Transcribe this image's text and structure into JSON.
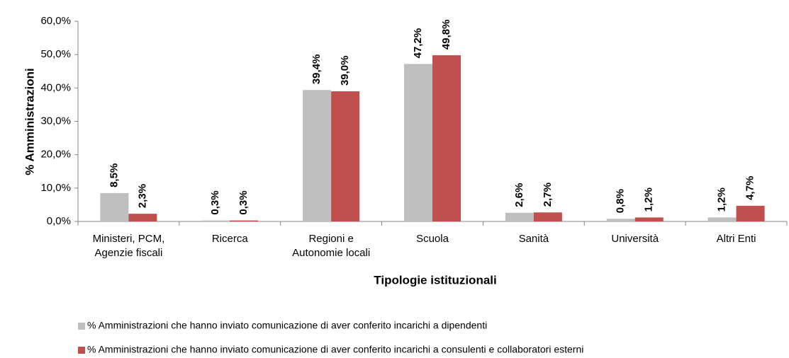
{
  "chart_data": {
    "type": "bar",
    "x_label": "Tipologie istituzionali",
    "y_label": "% Amministrazioni",
    "categories": [
      "Ministeri, PCM,\nAgenzie fiscali",
      "Ricerca",
      "Regioni e\nAutonomie locali",
      "Scuola",
      "Sanità",
      "Università",
      "Altri Enti"
    ],
    "series": [
      {
        "name": "% Amministrazioni che hanno inviato comunicazione di aver conferito incarichi a dipendenti",
        "color": "#bfbfbf",
        "values": [
          8.5,
          0.3,
          39.4,
          47.2,
          2.6,
          0.8,
          1.2
        ],
        "value_labels": [
          "8,5%",
          "0,3%",
          "39,4%",
          "47,2%",
          "2,6%",
          "0,8%",
          "1,2%"
        ]
      },
      {
        "name": "% Amministrazioni che hanno inviato comunicazione di aver conferito incarichi a consulenti e collaboratori esterni",
        "color": "#c0504d",
        "values": [
          2.3,
          0.3,
          39.0,
          49.8,
          2.7,
          1.2,
          4.7
        ],
        "value_labels": [
          "2,3%",
          "0,3%",
          "39,0%",
          "49,8%",
          "2,7%",
          "1,2%",
          "4,7%"
        ]
      }
    ],
    "ylim": [
      0,
      60
    ],
    "yticks": [
      {
        "value": 0,
        "label": "0,0%"
      },
      {
        "value": 10,
        "label": "10,0%"
      },
      {
        "value": 20,
        "label": "20,0%"
      },
      {
        "value": 30,
        "label": "30,0%"
      },
      {
        "value": 40,
        "label": "40,0%"
      },
      {
        "value": 50,
        "label": "50,0%"
      },
      {
        "value": 60,
        "label": "60,0%"
      }
    ],
    "legend": "bottom-left"
  }
}
